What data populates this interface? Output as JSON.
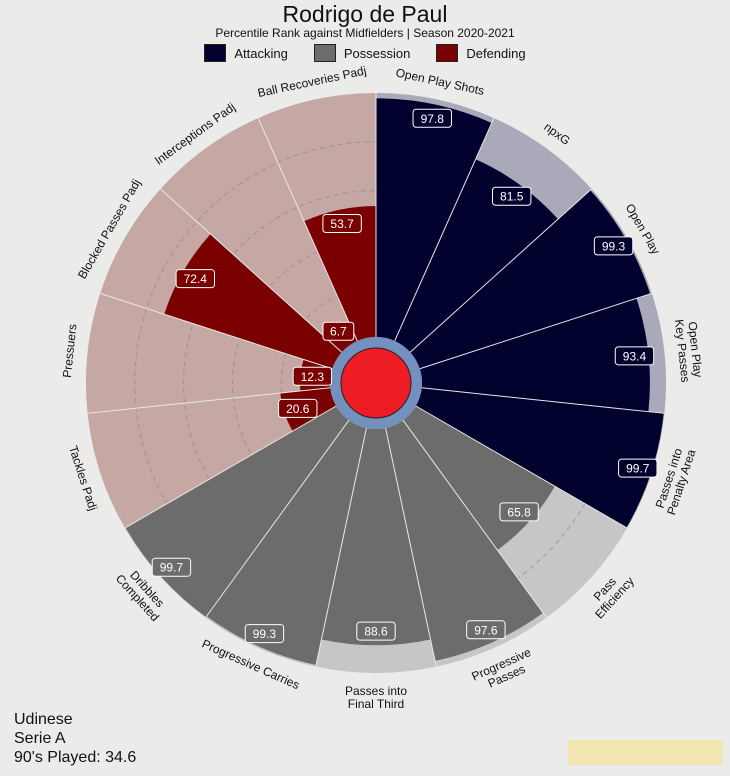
{
  "title": "Rodrigo de Paul",
  "subtitle": "Percentile Rank against Midfielders  | Season 2020-2021",
  "legend": [
    {
      "label": "Attacking",
      "color": "#01012e"
    },
    {
      "label": "Possession",
      "color": "#6c6c6c"
    },
    {
      "label": "Defending",
      "color": "#7a0000"
    }
  ],
  "footer": {
    "team": "Udinese",
    "league": "Serie A",
    "played": "90's Played: 34.6"
  },
  "chart_data": {
    "type": "polar-bar",
    "range": [
      0,
      100
    ],
    "start_angle_deg": 0,
    "direction": "clockwise",
    "metrics": [
      {
        "label": [
          "Open Play Shots"
        ],
        "value": 97.8,
        "group": "Attacking",
        "value_label": "97.8"
      },
      {
        "label": [
          "npxG"
        ],
        "value": 81.5,
        "group": "Attacking",
        "value_label": "81.5"
      },
      {
        "label": [
          "Open Play"
        ],
        "value": 99.3,
        "group": "Attacking",
        "value_label": "99.3"
      },
      {
        "label": [
          "Open Play",
          "Key Passes"
        ],
        "value": 93.4,
        "group": "Attacking",
        "value_label": "93.4"
      },
      {
        "label": [
          "Passes into",
          "Penalty Area"
        ],
        "value": 99.7,
        "group": "Attacking",
        "value_label": "99.7"
      },
      {
        "label": [
          "Pass",
          "Efficiency"
        ],
        "value": 65.8,
        "group": "Possession",
        "value_label": "65.8"
      },
      {
        "label": [
          "Progressive",
          "Passes"
        ],
        "value": 97.6,
        "group": "Possession",
        "value_label": "97.6"
      },
      {
        "label": [
          "Passes into",
          "Final Third"
        ],
        "value": 88.6,
        "group": "Possession",
        "value_label": "88.6"
      },
      {
        "label": [
          "Progressive Carries"
        ],
        "value": 99.3,
        "group": "Possession",
        "value_label": "99.3"
      },
      {
        "label": [
          "Dribbles",
          "Completed"
        ],
        "value": 99.7,
        "group": "Possession",
        "value_label": "99.7"
      },
      {
        "label": [
          "Tackles Padj"
        ],
        "value": 20.6,
        "group": "Defending",
        "value_label": "20.6"
      },
      {
        "label": [
          "Pressuers"
        ],
        "value": 12.3,
        "group": "Defending",
        "value_label": "12.3"
      },
      {
        "label": [
          "Blocked Passes Padj"
        ],
        "value": 72.4,
        "group": "Defending",
        "value_label": "72.4"
      },
      {
        "label": [
          "Interceptions Padj"
        ],
        "value": 6.7,
        "group": "Defending",
        "value_label": "6.7"
      },
      {
        "label": [
          "Ball Recoveries Padj"
        ],
        "value": 53.7,
        "group": "Defending",
        "value_label": "53.7"
      }
    ],
    "group_colors": {
      "Attacking": {
        "bar": "#01012e",
        "bg": "#a9a9b9"
      },
      "Possession": {
        "bar": "#6c6c6c",
        "bg": "#c6c6c6"
      },
      "Defending": {
        "bar": "#7a0000",
        "bg": "#c5a7a3"
      }
    },
    "center": {
      "ring_color": "#7390bf",
      "core_color": "#ee1c25"
    }
  }
}
